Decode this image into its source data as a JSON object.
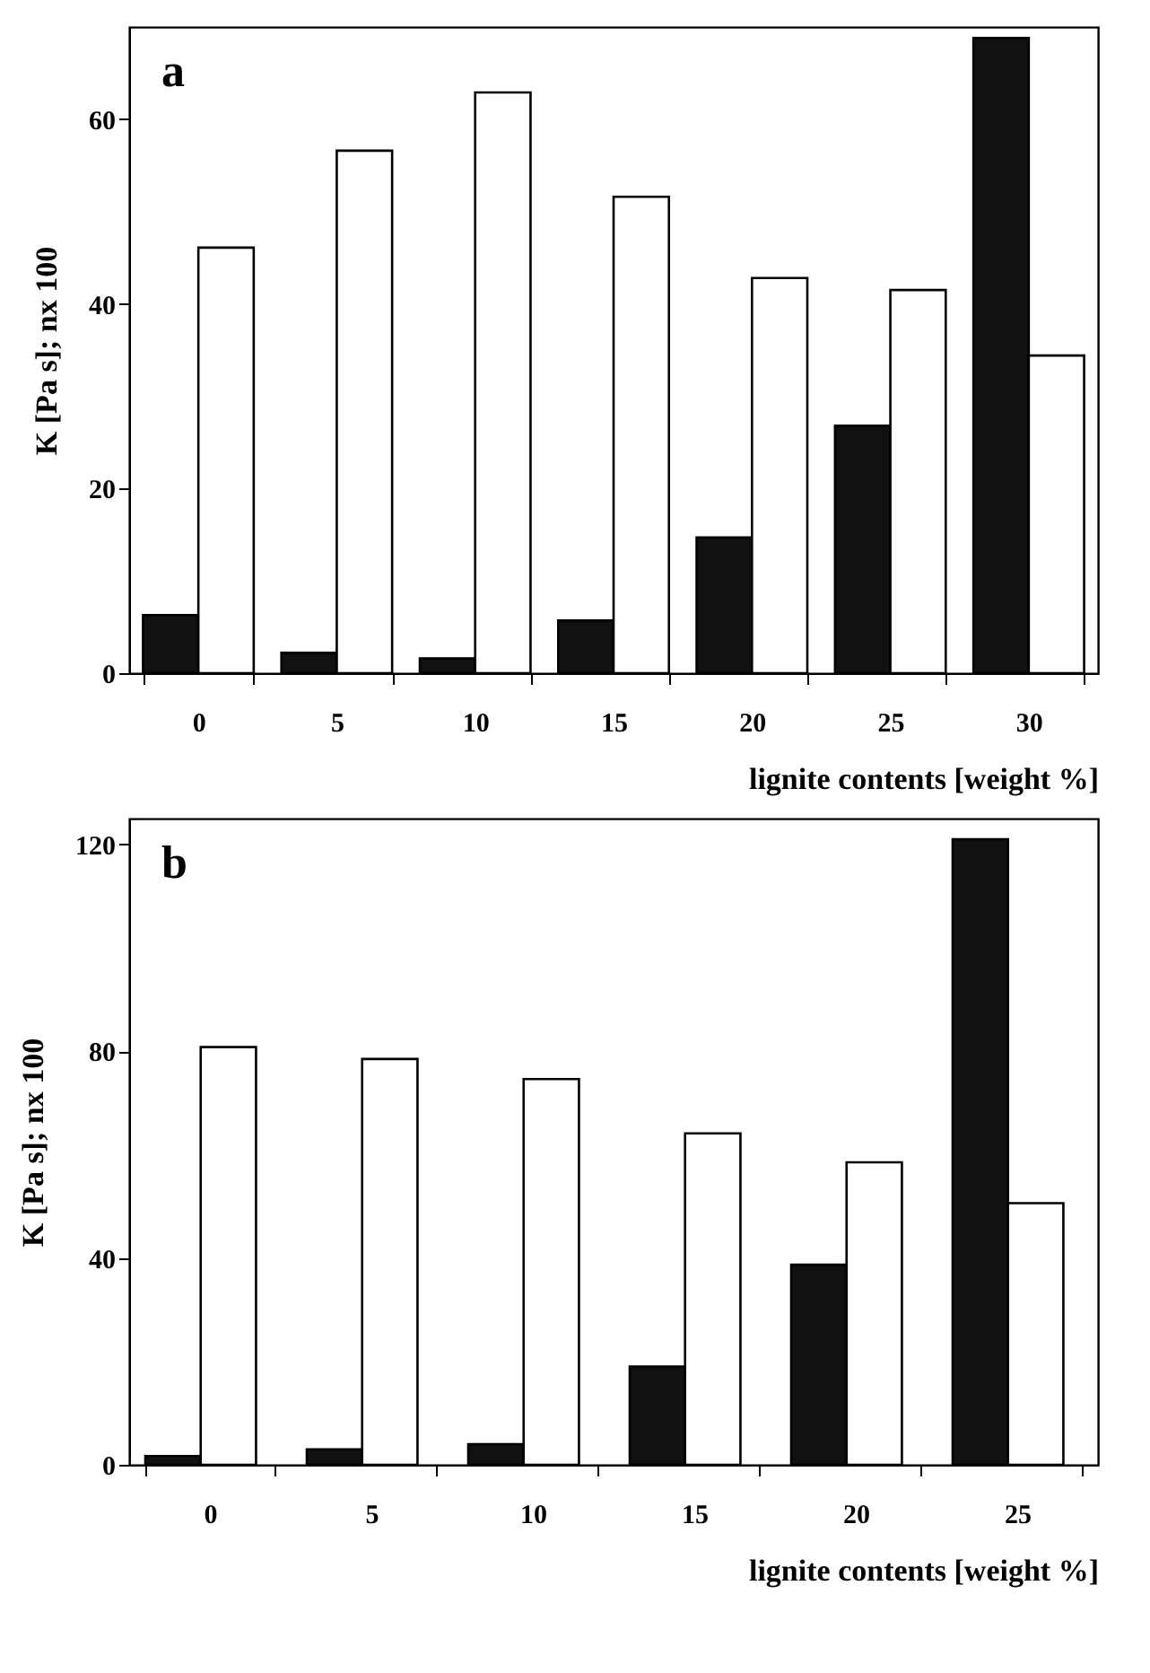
{
  "chart_data": [
    {
      "type": "bar",
      "annotations": [
        "a"
      ],
      "xlabel": "lignite contents [weight %]",
      "ylabel": "K [Pa s]; nx 100",
      "categories": [
        "0",
        "5",
        "10",
        "15",
        "20",
        "25",
        "30"
      ],
      "series": [
        {
          "color": "#111111",
          "values": [
            6.3,
            2.2,
            1.6,
            5.7,
            14.7,
            26.8,
            68.8
          ]
        },
        {
          "color": "#ffffff",
          "values": [
            46.1,
            56.6,
            62.9,
            51.6,
            42.8,
            41.5,
            34.4
          ]
        }
      ],
      "ylim": [
        0,
        70
      ],
      "yticks": [
        0,
        20,
        40,
        60
      ]
    },
    {
      "type": "bar",
      "annotations": [
        "b"
      ],
      "xlabel": "lignite contents [weight %]",
      "ylabel": "K [Pa s]; nx 100",
      "categories": [
        "0",
        "5",
        "10",
        "15",
        "20",
        "25"
      ],
      "series": [
        {
          "color": "#111111",
          "values": [
            1.7,
            3.0,
            4.0,
            19.0,
            38.7,
            121
          ]
        },
        {
          "color": "#ffffff",
          "values": [
            80.8,
            78.5,
            74.6,
            64.1,
            58.5,
            50.6
          ]
        }
      ],
      "ylim": [
        0,
        125
      ],
      "yticks": [
        0,
        40,
        80,
        120
      ]
    }
  ]
}
